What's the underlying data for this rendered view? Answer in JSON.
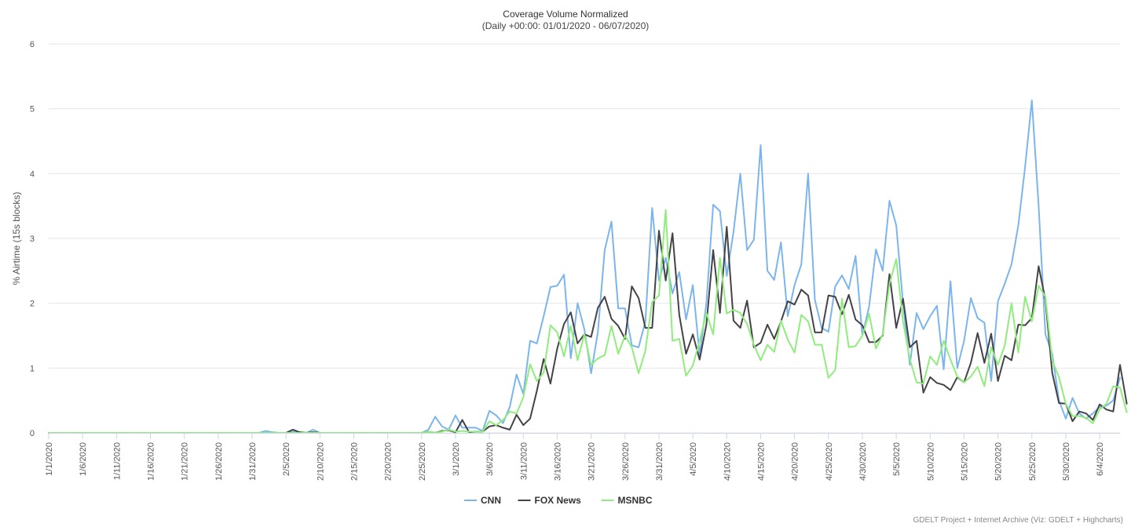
{
  "chart_data": {
    "type": "line",
    "title": "Coverage Volume Normalized",
    "subtitle": "(Daily +00:00: 01/01/2020 - 06/07/2020)",
    "xlabel": "",
    "ylabel": "% Airtime (15s blocks)",
    "ylim": [
      0,
      6
    ],
    "yticks": [
      0,
      1,
      2,
      3,
      4,
      5,
      6
    ],
    "grid": true,
    "legend_position": "bottom-center",
    "x_start": "1/1/2020",
    "x_end": "6/7/2020",
    "xtick_labels": [
      "1/1/2020",
      "1/6/2020",
      "1/11/2020",
      "1/16/2020",
      "1/21/2020",
      "1/26/2020",
      "1/31/2020",
      "2/5/2020",
      "2/10/2020",
      "2/15/2020",
      "2/20/2020",
      "2/25/2020",
      "3/1/2020",
      "3/6/2020",
      "3/11/2020",
      "3/16/2020",
      "3/21/2020",
      "3/26/2020",
      "3/31/2020",
      "4/5/2020",
      "4/10/2020",
      "4/15/2020",
      "4/20/2020",
      "4/25/2020",
      "4/30/2020",
      "5/5/2020",
      "5/10/2020",
      "5/15/2020",
      "5/20/2020",
      "5/25/2020",
      "5/30/2020",
      "6/4/2020"
    ],
    "credits": "GDELT Project + Internet Archive (Viz: GDELT + Highcharts)",
    "series": [
      {
        "name": "CNN",
        "color": "#7cb5ec",
        "values": [
          0,
          0,
          0,
          0,
          0,
          0,
          0,
          0,
          0,
          0,
          0,
          0,
          0,
          0,
          0,
          0,
          0,
          0,
          0,
          0,
          0,
          0,
          0,
          0,
          0,
          0,
          0,
          0,
          0,
          0,
          0,
          0,
          0.03,
          0.01,
          0,
          0,
          0.02,
          0.01,
          0,
          0.05,
          0,
          0,
          0,
          0,
          0,
          0,
          0,
          0,
          0,
          0,
          0,
          0,
          0,
          0,
          0,
          0,
          0.05,
          0.25,
          0.1,
          0.05,
          0.27,
          0.08,
          0.08,
          0.08,
          0.03,
          0.34,
          0.27,
          0.15,
          0.4,
          0.9,
          0.6,
          1.42,
          1.38,
          1.8,
          2.25,
          2.27,
          2.44,
          1.15,
          2.0,
          1.6,
          0.92,
          1.56,
          2.82,
          3.26,
          1.92,
          1.92,
          1.35,
          1.32,
          1.72,
          3.47,
          2.35,
          2.7,
          2.15,
          2.48,
          1.75,
          2.28,
          1.2,
          2.0,
          3.52,
          3.42,
          2.42,
          3.1,
          4.0,
          2.82,
          2.98,
          4.44,
          2.5,
          2.36,
          2.94,
          1.8,
          2.28,
          2.6,
          4.0,
          2.05,
          1.62,
          1.56,
          2.26,
          2.43,
          2.22,
          2.73,
          1.5,
          1.95,
          2.83,
          2.5,
          3.58,
          3.2,
          2.0,
          1.05,
          1.85,
          1.6,
          1.8,
          1.96,
          0.98,
          2.34,
          1.0,
          1.42,
          2.08,
          1.77,
          1.7,
          0.8,
          2.03,
          2.3,
          2.6,
          3.2,
          4.1,
          5.13,
          3.5,
          1.52,
          1.22,
          0.5,
          0.22,
          0.54,
          0.3,
          0.22,
          0.3,
          0.4,
          0.42,
          0.5,
          0.85
        ]
      },
      {
        "name": "FOX News",
        "color": "#434348",
        "values": [
          0,
          0,
          0,
          0,
          0,
          0,
          0,
          0,
          0,
          0,
          0,
          0,
          0,
          0,
          0,
          0,
          0,
          0,
          0,
          0,
          0,
          0,
          0,
          0,
          0,
          0,
          0,
          0,
          0,
          0,
          0,
          0,
          0,
          0,
          0,
          0,
          0.05,
          0.01,
          0,
          0.01,
          0,
          0,
          0,
          0,
          0,
          0,
          0,
          0,
          0,
          0,
          0,
          0,
          0,
          0,
          0,
          0,
          0.02,
          0,
          0.03,
          0.04,
          0.01,
          0.2,
          0.01,
          0.02,
          0.02,
          0.1,
          0.12,
          0.08,
          0.05,
          0.28,
          0.12,
          0.22,
          0.65,
          1.14,
          0.76,
          1.3,
          1.68,
          1.86,
          1.38,
          1.52,
          1.48,
          1.93,
          2.1,
          1.76,
          1.65,
          1.45,
          2.26,
          2.08,
          1.62,
          1.62,
          3.12,
          2.35,
          3.08,
          1.82,
          1.22,
          1.52,
          1.13,
          1.67,
          2.82,
          1.85,
          3.18,
          1.73,
          1.62,
          2.04,
          1.32,
          1.39,
          1.67,
          1.45,
          1.72,
          2.03,
          1.98,
          2.21,
          2.12,
          1.55,
          1.55,
          2.12,
          2.1,
          1.83,
          2.13,
          1.75,
          1.66,
          1.4,
          1.4,
          1.5,
          2.45,
          1.62,
          2.07,
          1.32,
          1.42,
          0.62,
          0.86,
          0.77,
          0.74,
          0.66,
          0.86,
          0.78,
          1.08,
          1.54,
          1.08,
          1.53,
          0.8,
          1.19,
          1.12,
          1.67,
          1.66,
          1.77,
          2.57,
          2.05,
          0.93,
          0.46,
          0.45,
          0.18,
          0.33,
          0.3,
          0.2,
          0.44,
          0.36,
          0.33,
          1.05,
          0.45
        ]
      },
      {
        "name": "MSNBC",
        "color": "#90ed7d",
        "values": [
          0,
          0,
          0,
          0,
          0,
          0,
          0,
          0,
          0,
          0,
          0,
          0,
          0,
          0,
          0,
          0,
          0,
          0,
          0,
          0,
          0,
          0,
          0,
          0,
          0,
          0,
          0,
          0,
          0,
          0,
          0,
          0,
          0,
          0,
          0,
          0,
          0,
          0,
          0,
          0,
          0,
          0,
          0,
          0,
          0,
          0,
          0,
          0,
          0,
          0,
          0,
          0,
          0,
          0,
          0,
          0,
          0.02,
          0,
          0.02,
          0.05,
          0.02,
          0.03,
          0.02,
          0.02,
          0.02,
          0.18,
          0.12,
          0.2,
          0.33,
          0.3,
          0.55,
          1.06,
          0.8,
          0.93,
          1.66,
          1.55,
          1.18,
          1.65,
          1.12,
          1.52,
          1.05,
          1.15,
          1.2,
          1.65,
          1.22,
          1.5,
          1.32,
          0.92,
          1.27,
          2.02,
          2.12,
          3.44,
          1.42,
          1.45,
          0.88,
          1.04,
          1.42,
          1.85,
          1.52,
          2.7,
          1.84,
          1.9,
          1.85,
          1.68,
          1.36,
          1.12,
          1.36,
          1.25,
          1.73,
          1.44,
          1.24,
          1.82,
          1.72,
          1.36,
          1.36,
          0.85,
          0.97,
          2.07,
          1.32,
          1.34,
          1.5,
          1.84,
          1.3,
          1.52,
          2.3,
          2.68,
          1.72,
          1.14,
          0.78,
          0.76,
          1.18,
          1.05,
          1.42,
          1.13,
          0.87,
          0.78,
          0.87,
          1.02,
          0.72,
          1.32,
          1.05,
          1.35,
          2.0,
          1.24,
          2.1,
          1.72,
          2.27,
          2.1,
          1.12,
          0.86,
          0.45,
          0.26,
          0.26,
          0.23,
          0.15,
          0.36,
          0.45,
          0.72,
          0.7,
          0.32
        ]
      }
    ]
  }
}
